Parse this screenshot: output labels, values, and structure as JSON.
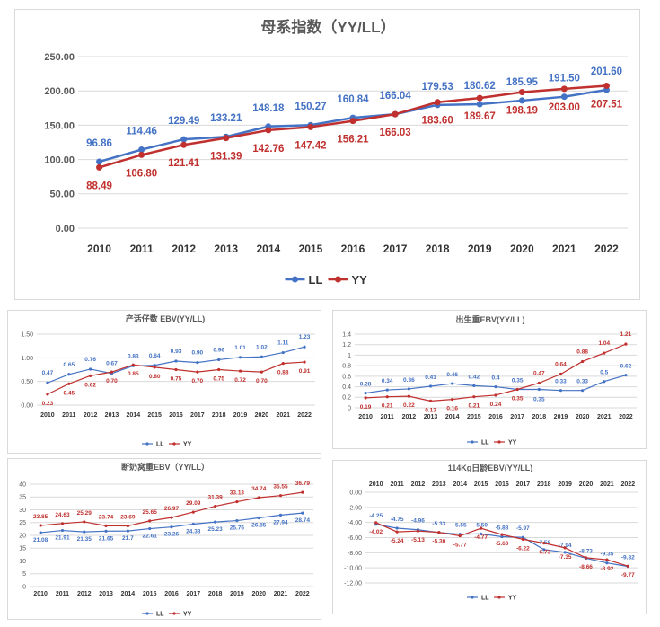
{
  "colors": {
    "LL": "#4472c4",
    "YY": "#c0302e",
    "grid": "#d9d9d9",
    "axis_text": "#595959",
    "title_text": "#595959"
  },
  "chart_data": [
    {
      "type": "line",
      "title": "母系指数（YY/LL）",
      "x": [
        "2010",
        "2011",
        "2012",
        "2013",
        "2014",
        "2015",
        "2016",
        "2017",
        "2018",
        "2019",
        "2020",
        "2021",
        "2022"
      ],
      "ylim": [
        0,
        250
      ],
      "yticks": [
        "0.00",
        "50.00",
        "100.00",
        "150.00",
        "200.00",
        "250.00"
      ],
      "grid": true,
      "legend_position": "bottom",
      "series": [
        {
          "name": "LL",
          "values": [
            96.86,
            114.46,
            129.49,
            133.21,
            148.18,
            150.27,
            160.84,
            166.04,
            179.53,
            180.62,
            185.95,
            191.5,
            201.6
          ],
          "labels": [
            "96.86",
            "114.46",
            "129.49",
            "133.21",
            "148.18",
            "150.27",
            "160.84",
            "166.04",
            "179.53",
            "180.62",
            "185.95",
            "191.50",
            "201.60"
          ]
        },
        {
          "name": "YY",
          "values": [
            88.49,
            106.8,
            121.41,
            131.39,
            142.76,
            147.42,
            156.21,
            166.03,
            183.6,
            189.67,
            198.19,
            203.0,
            207.51
          ],
          "labels": [
            "88.49",
            "106.80",
            "121.41",
            "131.39",
            "142.76",
            "147.42",
            "156.21",
            "166.03",
            "183.60",
            "189.67",
            "198.19",
            "203.00",
            "207.51"
          ]
        }
      ]
    },
    {
      "type": "line",
      "title": "产活仔数 EBV(YY/LL)",
      "x": [
        "2010",
        "2011",
        "2012",
        "2013",
        "2014",
        "2015",
        "2016",
        "2017",
        "2018",
        "2019",
        "2020",
        "2021",
        "2022"
      ],
      "ylim": [
        0,
        1.5
      ],
      "yticks": [
        "0.00",
        "0.50",
        "1.00",
        "1.50"
      ],
      "grid": true,
      "legend_position": "bottom",
      "series": [
        {
          "name": "LL",
          "values": [
            0.47,
            0.65,
            0.76,
            0.67,
            0.83,
            0.84,
            0.93,
            0.9,
            0.96,
            1.01,
            1.02,
            1.11,
            1.23
          ],
          "labels": [
            "0.47",
            "0.65",
            "0.76",
            "0.67",
            "0.83",
            "0.84",
            "0.93",
            "0.90",
            "0.96",
            "1.01",
            "1.02",
            "1.11",
            "1.23"
          ]
        },
        {
          "name": "YY",
          "values": [
            0.23,
            0.45,
            0.62,
            0.7,
            0.85,
            0.8,
            0.75,
            0.7,
            0.75,
            0.72,
            0.7,
            0.88,
            0.91
          ],
          "labels": [
            "0.23",
            "0.45",
            "0.62",
            "0.70",
            "0.85",
            "0.80",
            "0.75",
            "0.70",
            "0.75",
            "0.72",
            "0.70",
            "0.88",
            "0.91"
          ]
        }
      ]
    },
    {
      "type": "line",
      "title": "出生重EBV(YY/LL)",
      "x": [
        "2010",
        "2011",
        "2012",
        "2013",
        "2014",
        "2015",
        "2016",
        "2017",
        "2018",
        "2019",
        "2020",
        "2021",
        "2022"
      ],
      "ylim": [
        0,
        1.4
      ],
      "yticks": [
        "0",
        "0.2",
        "0.4",
        "0.6",
        "0.8",
        "1",
        "1.2",
        "1.4"
      ],
      "grid": true,
      "legend_position": "bottom",
      "series": [
        {
          "name": "LL",
          "values": [
            0.28,
            0.34,
            0.36,
            0.41,
            0.46,
            0.42,
            0.4,
            0.35,
            0.35,
            0.33,
            0.33,
            0.5,
            0.62
          ],
          "labels": [
            "0.28",
            "0.34",
            "0.36",
            "0.41",
            "0.46",
            "0.42",
            "0.4",
            "0.35",
            "0.35",
            "0.33",
            "0.33",
            "0.5",
            "0.62"
          ]
        },
        {
          "name": "YY",
          "values": [
            0.19,
            0.21,
            0.22,
            0.13,
            0.16,
            0.21,
            0.24,
            0.35,
            0.47,
            0.64,
            0.88,
            1.04,
            1.21
          ],
          "labels": [
            "0.19",
            "0.21",
            "0.22",
            "0.13",
            "0.16",
            "0.21",
            "0.24",
            "0.35",
            "0.47",
            "0.64",
            "0.88",
            "1.04",
            "1.21"
          ]
        }
      ]
    },
    {
      "type": "line",
      "title": "断奶窝重EBV（YY/LL）",
      "x": [
        "2010",
        "2011",
        "2012",
        "2013",
        "2014",
        "2015",
        "2016",
        "2017",
        "2018",
        "2019",
        "2020",
        "2021",
        "2022"
      ],
      "ylim": [
        0,
        40
      ],
      "yticks": [
        "0",
        "5",
        "10",
        "15",
        "20",
        "25",
        "30",
        "35",
        "40"
      ],
      "grid": true,
      "legend_position": "bottom",
      "series": [
        {
          "name": "LL",
          "values": [
            21.08,
            21.91,
            21.35,
            21.65,
            21.7,
            22.61,
            23.26,
            24.38,
            25.23,
            25.76,
            26.85,
            27.94,
            28.74
          ],
          "labels": [
            "21.08",
            "21.91",
            "21.35",
            "21.65",
            "21.7",
            "22.61",
            "23.26",
            "24.38",
            "25.23",
            "25.76",
            "26.85",
            "27.94",
            "28.74"
          ]
        },
        {
          "name": "YY",
          "values": [
            23.85,
            24.63,
            25.29,
            23.74,
            23.69,
            25.65,
            26.97,
            29.09,
            31.39,
            33.13,
            34.74,
            35.55,
            36.79
          ],
          "labels": [
            "23.85",
            "24.63",
            "25.29",
            "23.74",
            "23.69",
            "25.65",
            "26.97",
            "29.09",
            "31.39",
            "33.13",
            "34.74",
            "35.55",
            "36.79"
          ]
        }
      ]
    },
    {
      "type": "line",
      "title": "114Kg日龄EBV(YY/LL)",
      "x": [
        "2010",
        "2011",
        "2012",
        "2013",
        "2014",
        "2015",
        "2016",
        "2017",
        "2018",
        "2019",
        "2020",
        "2021",
        "2022"
      ],
      "ylim": [
        -12,
        0
      ],
      "yticks": [
        "0.00",
        "-2.00",
        "-4.00",
        "-6.00",
        "-8.00",
        "-10.00",
        "-12.00"
      ],
      "grid": true,
      "legend_position": "bottom",
      "x_axis_position": "top",
      "series": [
        {
          "name": "LL",
          "values": [
            -4.25,
            -4.75,
            -4.96,
            -5.33,
            -5.55,
            -5.5,
            -5.88,
            -5.97,
            -7.58,
            -7.94,
            -8.73,
            -9.35,
            -9.82
          ],
          "labels": [
            "-4.25",
            "-4.75",
            "-4.96",
            "-5.33",
            "-5.55",
            "-5.50",
            "-5.88",
            "-5.97",
            "-7.58",
            "-7.94",
            "-8.73",
            "-9.35",
            "-9.82"
          ]
        },
        {
          "name": "YY",
          "values": [
            -4.02,
            -5.24,
            -5.13,
            -5.3,
            -5.77,
            -4.77,
            -5.6,
            -6.22,
            -6.73,
            -7.35,
            -8.66,
            -8.92,
            -9.77
          ],
          "labels": [
            "-4.02",
            "-5.24",
            "-5.13",
            "-5.30",
            "-5.77",
            "-4.77",
            "-5.60",
            "-6.22",
            "-6.73",
            "-7.35",
            "-8.66",
            "-8.92",
            "-9.77"
          ]
        }
      ]
    }
  ]
}
